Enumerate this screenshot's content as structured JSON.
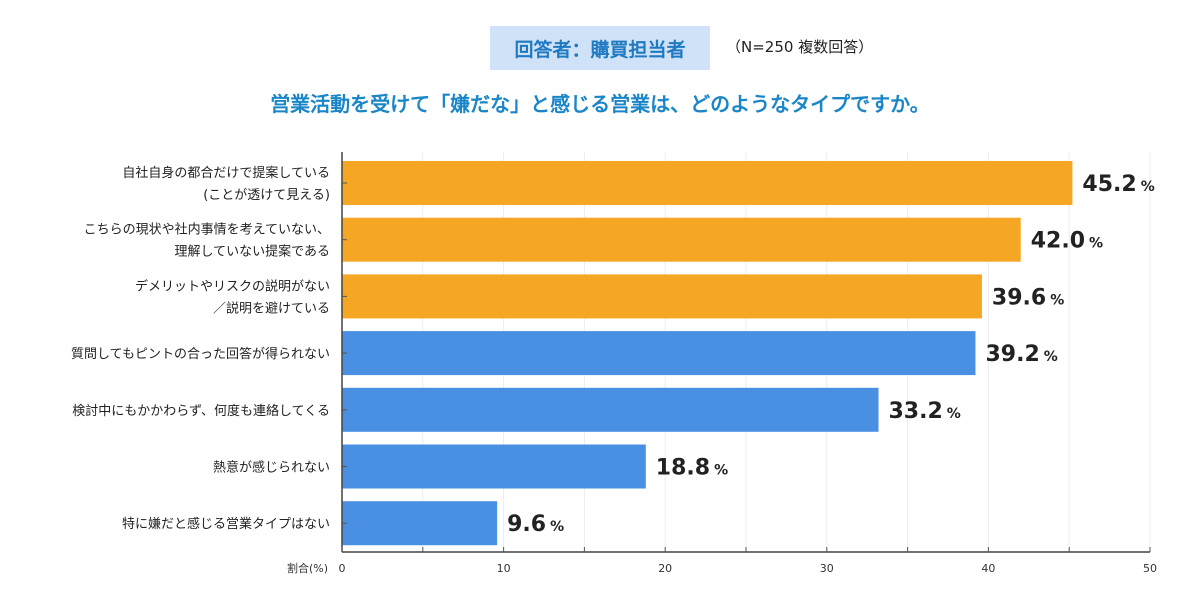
{
  "header": {
    "respondent_badge": "回答者：購買担当者",
    "sample_note": "（N=250 複数回答）"
  },
  "chart_data": {
    "type": "bar",
    "orientation": "horizontal",
    "title": "営業活動を受けて「嫌だな」と感じる営業は、どのようなタイプですか。",
    "xlabel": "割合(%)",
    "xlim": [
      0,
      50
    ],
    "xticks": [
      0,
      10,
      20,
      30,
      40,
      50
    ],
    "grid": true,
    "categories": [
      [
        "自社自身の都合だけで提案している",
        "(ことが透けて見える)"
      ],
      [
        "こちらの現状や社内事情を考えていない、",
        "理解していない提案である"
      ],
      [
        "デメリットやリスクの説明がない",
        "／説明を避けている"
      ],
      [
        "質問してもピントの合った回答が得られない"
      ],
      [
        "検討中にもかかわらず、何度も連絡してくる"
      ],
      [
        "熱意が感じられない"
      ],
      [
        "特に嫌だと感じる営業タイプはない"
      ]
    ],
    "values": [
      45.2,
      42.0,
      39.6,
      39.2,
      33.2,
      18.8,
      9.6
    ],
    "value_labels": [
      "45.2",
      "42.0",
      "39.6",
      "39.2",
      "33.2",
      "18.8",
      "9.6"
    ],
    "unit": "%",
    "bar_colors": [
      "#f5a623",
      "#f5a623",
      "#f5a623",
      "#4a90e2",
      "#4a90e2",
      "#4a90e2",
      "#4a90e2"
    ]
  }
}
